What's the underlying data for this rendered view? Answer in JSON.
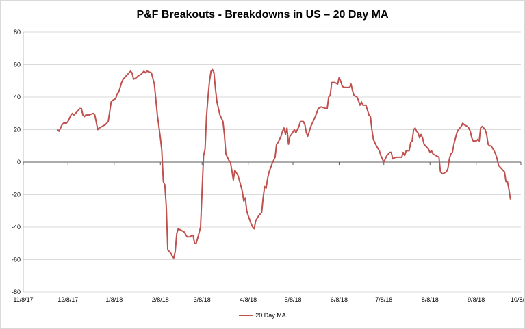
{
  "chart_data": {
    "type": "line",
    "title": "P&F Breakouts - Breakdowns in US – 20 Day MA",
    "xlabel": "",
    "ylabel": "",
    "ylim": [
      -80,
      80
    ],
    "yticks": [
      80,
      60,
      40,
      20,
      0,
      -20,
      -40,
      -60,
      -80
    ],
    "xlim": [
      "2017-11-08",
      "2018-10-08"
    ],
    "xticks": [
      {
        "date": "2017-11-08",
        "label": "11/8/17"
      },
      {
        "date": "2017-12-08",
        "label": "12/8/17"
      },
      {
        "date": "2018-01-08",
        "label": "1/8/18"
      },
      {
        "date": "2018-02-08",
        "label": "2/8/18"
      },
      {
        "date": "2018-03-08",
        "label": "3/8/18"
      },
      {
        "date": "2018-04-08",
        "label": "4/8/18"
      },
      {
        "date": "2018-05-08",
        "label": "5/8/18"
      },
      {
        "date": "2018-06-08",
        "label": "6/8/18"
      },
      {
        "date": "2018-07-08",
        "label": "7/8/18"
      },
      {
        "date": "2018-08-08",
        "label": "8/8/18"
      },
      {
        "date": "2018-09-08",
        "label": "9/8/18"
      },
      {
        "date": "2018-10-08",
        "label": "10/8/18"
      }
    ],
    "grid": true,
    "legend_position": "bottom",
    "series": [
      {
        "name": "20 Day MA",
        "color": "#c0504d",
        "points": [
          [
            "2017-12-01",
            20
          ],
          [
            "2017-12-02",
            19
          ],
          [
            "2017-12-04",
            23
          ],
          [
            "2017-12-05",
            24
          ],
          [
            "2017-12-07",
            24
          ],
          [
            "2017-12-08",
            25
          ],
          [
            "2017-12-10",
            29
          ],
          [
            "2017-12-11",
            30
          ],
          [
            "2017-12-12",
            29
          ],
          [
            "2017-12-14",
            31
          ],
          [
            "2017-12-16",
            33
          ],
          [
            "2017-12-17",
            33
          ],
          [
            "2017-12-18",
            29
          ],
          [
            "2017-12-19",
            28
          ],
          [
            "2017-12-20",
            29
          ],
          [
            "2017-12-22",
            29
          ],
          [
            "2017-12-25",
            30
          ],
          [
            "2017-12-26",
            29
          ],
          [
            "2017-12-28",
            20
          ],
          [
            "2017-12-29",
            21
          ],
          [
            "2018-01-02",
            23
          ],
          [
            "2018-01-04",
            25
          ],
          [
            "2018-01-06",
            37
          ],
          [
            "2018-01-07",
            38
          ],
          [
            "2018-01-09",
            39
          ],
          [
            "2018-01-10",
            42
          ],
          [
            "2018-01-11",
            43
          ],
          [
            "2018-01-13",
            49
          ],
          [
            "2018-01-14",
            51
          ],
          [
            "2018-01-16",
            53
          ],
          [
            "2018-01-18",
            55
          ],
          [
            "2018-01-19",
            56
          ],
          [
            "2018-01-20",
            55
          ],
          [
            "2018-01-21",
            51
          ],
          [
            "2018-01-23",
            52
          ],
          [
            "2018-01-24",
            53
          ],
          [
            "2018-01-26",
            54
          ],
          [
            "2018-01-27",
            55
          ],
          [
            "2018-01-28",
            56
          ],
          [
            "2018-01-29",
            55
          ],
          [
            "2018-01-30",
            56
          ],
          [
            "2018-02-02",
            55
          ],
          [
            "2018-02-04",
            48
          ],
          [
            "2018-02-06",
            29
          ],
          [
            "2018-02-08",
            15
          ],
          [
            "2018-02-09",
            7
          ],
          [
            "2018-02-10",
            -12
          ],
          [
            "2018-02-11",
            -14
          ],
          [
            "2018-02-12",
            -28
          ],
          [
            "2018-02-13",
            -54
          ],
          [
            "2018-02-14",
            -55
          ],
          [
            "2018-02-15",
            -56
          ],
          [
            "2018-02-16",
            -58
          ],
          [
            "2018-02-17",
            -59
          ],
          [
            "2018-02-18",
            -55
          ],
          [
            "2018-02-19",
            -44
          ],
          [
            "2018-02-20",
            -41
          ],
          [
            "2018-02-22",
            -42
          ],
          [
            "2018-02-24",
            -43
          ],
          [
            "2018-02-26",
            -46
          ],
          [
            "2018-02-28",
            -46
          ],
          [
            "2018-03-01",
            -45
          ],
          [
            "2018-03-02",
            -45
          ],
          [
            "2018-03-03",
            -50
          ],
          [
            "2018-03-04",
            -50
          ],
          [
            "2018-03-05",
            -47
          ],
          [
            "2018-03-07",
            -40
          ],
          [
            "2018-03-08",
            -18
          ],
          [
            "2018-03-09",
            4
          ],
          [
            "2018-03-10",
            8
          ],
          [
            "2018-03-11",
            28
          ],
          [
            "2018-03-12",
            40
          ],
          [
            "2018-03-13",
            50
          ],
          [
            "2018-03-14",
            56
          ],
          [
            "2018-03-15",
            57
          ],
          [
            "2018-03-16",
            55
          ],
          [
            "2018-03-17",
            45
          ],
          [
            "2018-03-18",
            37
          ],
          [
            "2018-03-19",
            33
          ],
          [
            "2018-03-20",
            29
          ],
          [
            "2018-03-22",
            25
          ],
          [
            "2018-03-23",
            17
          ],
          [
            "2018-03-24",
            5
          ],
          [
            "2018-03-26",
            1
          ],
          [
            "2018-03-27",
            0
          ],
          [
            "2018-03-28",
            -5
          ],
          [
            "2018-03-29",
            -11
          ],
          [
            "2018-03-30",
            -5
          ],
          [
            "2018-04-01",
            -8
          ],
          [
            "2018-04-02",
            -11
          ],
          [
            "2018-04-04",
            -18
          ],
          [
            "2018-04-05",
            -24
          ],
          [
            "2018-04-06",
            -22
          ],
          [
            "2018-04-07",
            -30
          ],
          [
            "2018-04-08",
            -33
          ],
          [
            "2018-04-10",
            -38
          ],
          [
            "2018-04-11",
            -40
          ],
          [
            "2018-04-12",
            -41
          ],
          [
            "2018-04-13",
            -36
          ],
          [
            "2018-04-15",
            -33
          ],
          [
            "2018-04-17",
            -31
          ],
          [
            "2018-04-18",
            -22
          ],
          [
            "2018-04-19",
            -15
          ],
          [
            "2018-04-20",
            -16
          ],
          [
            "2018-04-21",
            -10
          ],
          [
            "2018-04-22",
            -6
          ],
          [
            "2018-04-24",
            -1
          ],
          [
            "2018-04-25",
            1
          ],
          [
            "2018-04-26",
            3
          ],
          [
            "2018-04-27",
            11
          ],
          [
            "2018-04-28",
            12
          ],
          [
            "2018-04-30",
            16
          ],
          [
            "2018-05-01",
            19
          ],
          [
            "2018-05-02",
            21
          ],
          [
            "2018-05-03",
            17
          ],
          [
            "2018-05-04",
            21
          ],
          [
            "2018-05-05",
            11
          ],
          [
            "2018-05-06",
            16
          ],
          [
            "2018-05-07",
            17
          ],
          [
            "2018-05-09",
            20
          ],
          [
            "2018-05-10",
            18
          ],
          [
            "2018-05-12",
            22
          ],
          [
            "2018-05-13",
            25
          ],
          [
            "2018-05-15",
            25
          ],
          [
            "2018-05-16",
            23
          ],
          [
            "2018-05-17",
            18
          ],
          [
            "2018-05-18",
            16
          ],
          [
            "2018-05-20",
            22
          ],
          [
            "2018-05-21",
            24
          ],
          [
            "2018-05-23",
            28
          ],
          [
            "2018-05-25",
            33
          ],
          [
            "2018-05-27",
            34
          ],
          [
            "2018-05-30",
            33
          ],
          [
            "2018-05-31",
            33
          ],
          [
            "2018-06-01",
            40
          ],
          [
            "2018-06-02",
            41
          ],
          [
            "2018-06-03",
            49
          ],
          [
            "2018-06-05",
            49
          ],
          [
            "2018-06-07",
            48
          ],
          [
            "2018-06-08",
            52
          ],
          [
            "2018-06-09",
            50
          ],
          [
            "2018-06-10",
            47
          ],
          [
            "2018-06-11",
            46
          ],
          [
            "2018-06-13",
            46
          ],
          [
            "2018-06-15",
            46
          ],
          [
            "2018-06-16",
            48
          ],
          [
            "2018-06-17",
            44
          ],
          [
            "2018-06-18",
            41
          ],
          [
            "2018-06-20",
            40
          ],
          [
            "2018-06-21",
            38
          ],
          [
            "2018-06-22",
            35
          ],
          [
            "2018-06-23",
            37
          ],
          [
            "2018-06-24",
            35
          ],
          [
            "2018-06-26",
            35
          ],
          [
            "2018-06-28",
            29
          ],
          [
            "2018-06-29",
            28
          ],
          [
            "2018-06-30",
            20
          ],
          [
            "2018-07-01",
            14
          ],
          [
            "2018-07-03",
            10
          ],
          [
            "2018-07-05",
            7
          ],
          [
            "2018-07-06",
            4
          ],
          [
            "2018-07-07",
            2
          ],
          [
            "2018-07-08",
            0
          ],
          [
            "2018-07-09",
            2
          ],
          [
            "2018-07-10",
            4
          ],
          [
            "2018-07-12",
            6
          ],
          [
            "2018-07-13",
            6
          ],
          [
            "2018-07-14",
            2
          ],
          [
            "2018-07-16",
            3
          ],
          [
            "2018-07-18",
            3
          ],
          [
            "2018-07-20",
            3
          ],
          [
            "2018-07-21",
            6
          ],
          [
            "2018-07-22",
            4
          ],
          [
            "2018-07-23",
            7
          ],
          [
            "2018-07-25",
            7
          ],
          [
            "2018-07-26",
            12
          ],
          [
            "2018-07-27",
            13
          ],
          [
            "2018-07-28",
            20
          ],
          [
            "2018-07-29",
            21
          ],
          [
            "2018-07-30",
            19
          ],
          [
            "2018-07-31",
            18
          ],
          [
            "2018-08-01",
            15
          ],
          [
            "2018-08-02",
            17
          ],
          [
            "2018-08-03",
            15
          ],
          [
            "2018-08-04",
            11
          ],
          [
            "2018-08-06",
            9
          ],
          [
            "2018-08-07",
            8
          ],
          [
            "2018-08-08",
            6
          ],
          [
            "2018-08-09",
            7
          ],
          [
            "2018-08-10",
            5
          ],
          [
            "2018-08-12",
            4
          ],
          [
            "2018-08-14",
            3
          ],
          [
            "2018-08-15",
            -6
          ],
          [
            "2018-08-16",
            -7
          ],
          [
            "2018-08-17",
            -7
          ],
          [
            "2018-08-19",
            -6
          ],
          [
            "2018-08-20",
            -4
          ],
          [
            "2018-08-21",
            2
          ],
          [
            "2018-08-22",
            5
          ],
          [
            "2018-08-23",
            6
          ],
          [
            "2018-08-24",
            11
          ],
          [
            "2018-08-26",
            18
          ],
          [
            "2018-08-27",
            20
          ],
          [
            "2018-08-28",
            21
          ],
          [
            "2018-08-29",
            22
          ],
          [
            "2018-08-30",
            24
          ],
          [
            "2018-08-31",
            23
          ],
          [
            "2018-09-02",
            22
          ],
          [
            "2018-09-03",
            21
          ],
          [
            "2018-09-04",
            19
          ],
          [
            "2018-09-05",
            15
          ],
          [
            "2018-09-06",
            13
          ],
          [
            "2018-09-07",
            13
          ],
          [
            "2018-09-08",
            13
          ],
          [
            "2018-09-09",
            14
          ],
          [
            "2018-09-10",
            13
          ],
          [
            "2018-09-11",
            21
          ],
          [
            "2018-09-12",
            22
          ],
          [
            "2018-09-13",
            21
          ],
          [
            "2018-09-14",
            20
          ],
          [
            "2018-09-15",
            17
          ],
          [
            "2018-09-16",
            11
          ],
          [
            "2018-09-17",
            10
          ],
          [
            "2018-09-18",
            10
          ],
          [
            "2018-09-20",
            7
          ],
          [
            "2018-09-21",
            5
          ],
          [
            "2018-09-22",
            2
          ],
          [
            "2018-09-23",
            -2
          ],
          [
            "2018-09-24",
            -3
          ],
          [
            "2018-09-25",
            -4
          ],
          [
            "2018-09-26",
            -5
          ],
          [
            "2018-09-27",
            -6
          ],
          [
            "2018-09-28",
            -12
          ],
          [
            "2018-09-29",
            -12
          ],
          [
            "2018-09-30",
            -17
          ],
          [
            "2018-10-01",
            -23
          ]
        ]
      }
    ]
  }
}
